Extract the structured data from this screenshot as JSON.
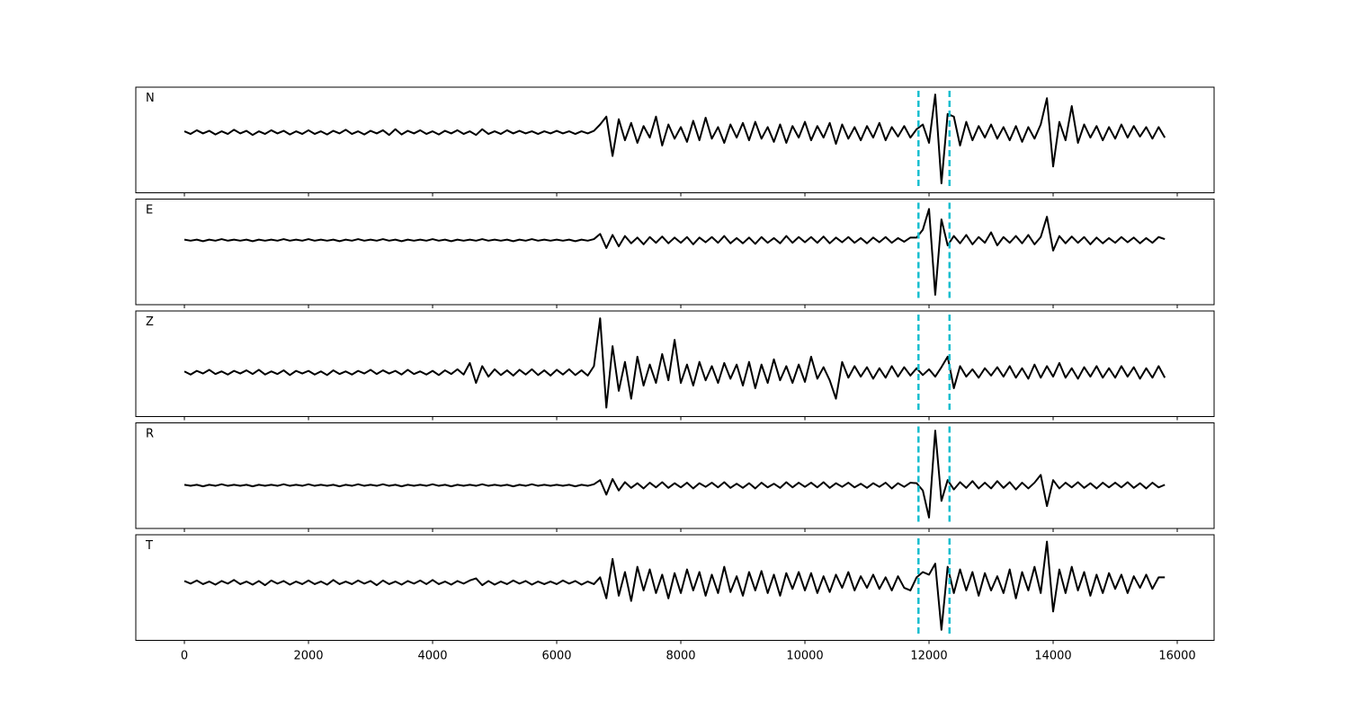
{
  "chart_data": {
    "type": "line",
    "x": [
      0,
      100,
      200,
      300,
      400,
      500,
      600,
      700,
      800,
      900,
      1000,
      1100,
      1200,
      1300,
      1400,
      1500,
      1600,
      1700,
      1800,
      1900,
      2000,
      2100,
      2200,
      2300,
      2400,
      2500,
      2600,
      2700,
      2800,
      2900,
      3000,
      3100,
      3200,
      3300,
      3400,
      3500,
      3600,
      3700,
      3800,
      3900,
      4000,
      4100,
      4200,
      4300,
      4400,
      4500,
      4600,
      4700,
      4800,
      4900,
      5000,
      5100,
      5200,
      5300,
      5400,
      5500,
      5600,
      5700,
      5800,
      5900,
      6000,
      6100,
      6200,
      6300,
      6400,
      6500,
      6600,
      6700,
      6800,
      6900,
      7000,
      7100,
      7200,
      7300,
      7400,
      7500,
      7600,
      7700,
      7800,
      7900,
      8000,
      8100,
      8200,
      8300,
      8400,
      8500,
      8600,
      8700,
      8800,
      8900,
      9000,
      9100,
      9200,
      9300,
      9400,
      9500,
      9600,
      9700,
      9800,
      9900,
      10000,
      10100,
      10200,
      10300,
      10400,
      10500,
      10600,
      10700,
      10800,
      10900,
      11000,
      11100,
      11200,
      11300,
      11400,
      11500,
      11600,
      11700,
      11800,
      11900,
      12000,
      12100,
      12200,
      12300,
      12400,
      12500,
      12600,
      12700,
      12800,
      12900,
      13000,
      13100,
      13200,
      13300,
      13400,
      13500,
      13600,
      13700,
      13800,
      13900,
      14000,
      14100,
      14200,
      14300,
      14400,
      14500,
      14600,
      14700,
      14800,
      14900,
      15000,
      15100,
      15200,
      15300,
      15400,
      15500,
      15600,
      15700,
      15800
    ],
    "xlim": [
      -783,
      16594
    ],
    "xticks": [
      0,
      2000,
      4000,
      6000,
      8000,
      10000,
      12000,
      14000,
      16000
    ],
    "markers": [
      11830,
      12330
    ],
    "marker_color": "#17becf",
    "color": "#000000",
    "series": [
      {
        "name": "N",
        "ylim": [
          -1.15,
          0.86
        ],
        "values": [
          0.02,
          -0.03,
          0.04,
          -0.02,
          0.03,
          -0.04,
          0.02,
          -0.03,
          0.05,
          -0.02,
          0.03,
          -0.05,
          0.02,
          -0.03,
          0.04,
          -0.02,
          0.03,
          -0.04,
          0.02,
          -0.03,
          0.04,
          -0.03,
          0.02,
          -0.04,
          0.03,
          -0.02,
          0.05,
          -0.03,
          0.02,
          -0.04,
          0.03,
          -0.02,
          0.04,
          -0.05,
          0.06,
          -0.04,
          0.03,
          -0.02,
          0.04,
          -0.03,
          0.02,
          -0.04,
          0.03,
          -0.02,
          0.04,
          -0.03,
          0.02,
          -0.05,
          0.06,
          -0.03,
          0.02,
          -0.03,
          0.04,
          -0.02,
          0.03,
          -0.02,
          0.02,
          -0.03,
          0.02,
          -0.02,
          0.03,
          -0.02,
          0.02,
          -0.03,
          0.02,
          -0.02,
          0.03,
          0.15,
          0.3,
          -0.45,
          0.25,
          -0.15,
          0.18,
          -0.2,
          0.12,
          -0.1,
          0.3,
          -0.25,
          0.15,
          -0.12,
          0.1,
          -0.18,
          0.22,
          -0.15,
          0.28,
          -0.12,
          0.1,
          -0.2,
          0.15,
          -0.1,
          0.18,
          -0.15,
          0.2,
          -0.12,
          0.1,
          -0.18,
          0.15,
          -0.2,
          0.12,
          -0.1,
          0.2,
          -0.15,
          0.12,
          -0.1,
          0.18,
          -0.22,
          0.15,
          -0.12,
          0.1,
          -0.15,
          0.12,
          -0.1,
          0.18,
          -0.15,
          0.1,
          -0.08,
          0.12,
          -0.1,
          0.06,
          0.15,
          -0.2,
          0.72,
          -0.97,
          0.35,
          0.3,
          -0.25,
          0.2,
          -0.15,
          0.12,
          -0.1,
          0.15,
          -0.12,
          0.1,
          -0.15,
          0.12,
          -0.18,
          0.1,
          -0.12,
          0.15,
          0.65,
          -0.65,
          0.2,
          -0.15,
          0.5,
          -0.2,
          0.15,
          -0.1,
          0.12,
          -0.15,
          0.1,
          -0.12,
          0.15,
          -0.1,
          0.12,
          -0.08,
          0.1,
          -0.12,
          0.1,
          -0.1
        ]
      },
      {
        "name": "E",
        "ylim": [
          -1.24,
          0.79
        ],
        "values": [
          0.01,
          -0.01,
          0.01,
          -0.02,
          0.01,
          -0.01,
          0.02,
          -0.01,
          0.01,
          -0.01,
          0.01,
          -0.02,
          0.01,
          -0.01,
          0.01,
          -0.01,
          0.02,
          -0.01,
          0.01,
          -0.01,
          0.02,
          -0.01,
          0.01,
          -0.01,
          0.01,
          -0.02,
          0.01,
          -0.01,
          0.02,
          -0.01,
          0.01,
          -0.01,
          0.02,
          -0.01,
          0.01,
          -0.02,
          0.01,
          -0.01,
          0.01,
          -0.01,
          0.02,
          -0.01,
          0.01,
          -0.02,
          0.01,
          -0.01,
          0.01,
          -0.01,
          0.02,
          -0.01,
          0.01,
          -0.01,
          0.01,
          -0.02,
          0.01,
          -0.01,
          0.02,
          -0.01,
          0.01,
          -0.01,
          0.01,
          -0.01,
          0.01,
          -0.02,
          0.01,
          -0.01,
          0.02,
          0.12,
          -0.15,
          0.1,
          -0.12,
          0.08,
          -0.06,
          0.05,
          -0.08,
          0.06,
          -0.05,
          0.07,
          -0.06,
          0.05,
          -0.05,
          0.06,
          -0.08,
          0.05,
          -0.04,
          0.06,
          -0.05,
          0.08,
          -0.06,
          0.04,
          -0.06,
          0.05,
          -0.07,
          0.06,
          -0.05,
          0.04,
          -0.06,
          0.08,
          -0.05,
          0.06,
          -0.04,
          0.06,
          -0.05,
          0.07,
          -0.06,
          0.05,
          -0.04,
          0.06,
          -0.05,
          0.04,
          -0.06,
          0.05,
          -0.04,
          0.06,
          -0.05,
          0.04,
          -0.03,
          0.05,
          0.05,
          0.2,
          0.6,
          -1.05,
          0.4,
          -0.1,
          0.08,
          -0.06,
          0.1,
          -0.08,
          0.06,
          -0.05,
          0.15,
          -0.1,
          0.06,
          -0.05,
          0.08,
          -0.06,
          0.1,
          -0.08,
          0.06,
          0.45,
          -0.2,
          0.08,
          -0.06,
          0.07,
          -0.05,
          0.06,
          -0.08,
          0.05,
          -0.06,
          0.04,
          -0.05,
          0.06,
          -0.04,
          0.05,
          -0.06,
          0.04,
          -0.05,
          0.06,
          0.02
        ]
      },
      {
        "name": "Z",
        "ylim": [
          -0.84,
          1.17
        ],
        "values": [
          0.02,
          -0.04,
          0.03,
          -0.02,
          0.05,
          -0.03,
          0.02,
          -0.04,
          0.03,
          -0.02,
          0.04,
          -0.03,
          0.05,
          -0.04,
          0.02,
          -0.03,
          0.04,
          -0.05,
          0.03,
          -0.02,
          0.03,
          -0.04,
          0.02,
          -0.05,
          0.04,
          -0.03,
          0.02,
          -0.04,
          0.03,
          -0.02,
          0.05,
          -0.03,
          0.04,
          -0.02,
          0.03,
          -0.04,
          0.05,
          -0.03,
          0.02,
          -0.04,
          0.03,
          -0.05,
          0.04,
          -0.03,
          0.06,
          -0.04,
          0.18,
          -0.2,
          0.12,
          -0.08,
          0.06,
          -0.05,
          0.04,
          -0.06,
          0.05,
          -0.04,
          0.06,
          -0.05,
          0.04,
          -0.06,
          0.05,
          -0.04,
          0.06,
          -0.05,
          0.04,
          -0.06,
          0.12,
          1.03,
          -0.67,
          0.5,
          -0.35,
          0.2,
          -0.5,
          0.3,
          -0.25,
          0.15,
          -0.2,
          0.35,
          -0.15,
          0.62,
          -0.2,
          0.15,
          -0.25,
          0.2,
          -0.15,
          0.12,
          -0.2,
          0.18,
          -0.12,
          0.15,
          -0.25,
          0.2,
          -0.3,
          0.15,
          -0.2,
          0.25,
          -0.15,
          0.12,
          -0.2,
          0.15,
          -0.18,
          0.3,
          -0.12,
          0.1,
          -0.15,
          -0.5,
          0.2,
          -0.1,
          0.12,
          -0.08,
          0.1,
          -0.12,
          0.08,
          -0.1,
          0.12,
          -0.08,
          0.1,
          -0.06,
          0.08,
          -0.05,
          0.06,
          -0.08,
          0.1,
          0.3,
          -0.3,
          0.12,
          -0.08,
          0.06,
          -0.1,
          0.08,
          -0.06,
          0.1,
          -0.08,
          0.12,
          -0.1,
          0.08,
          -0.12,
          0.15,
          -0.1,
          0.12,
          -0.08,
          0.18,
          -0.1,
          0.08,
          -0.12,
          0.1,
          -0.08,
          0.12,
          -0.1,
          0.08,
          -0.1,
          0.12,
          -0.08,
          0.1,
          -0.12,
          0.08,
          -0.1,
          0.12,
          -0.1
        ]
      },
      {
        "name": "R",
        "ylim": [
          -0.83,
          1.2
        ],
        "values": [
          0.01,
          -0.01,
          0.01,
          -0.02,
          0.01,
          -0.01,
          0.02,
          -0.01,
          0.01,
          -0.01,
          0.01,
          -0.02,
          0.01,
          -0.01,
          0.01,
          -0.01,
          0.02,
          -0.01,
          0.01,
          -0.01,
          0.02,
          -0.01,
          0.01,
          -0.01,
          0.01,
          -0.02,
          0.01,
          -0.01,
          0.02,
          -0.01,
          0.01,
          -0.01,
          0.02,
          -0.01,
          0.01,
          -0.02,
          0.01,
          -0.01,
          0.01,
          -0.01,
          0.02,
          -0.01,
          0.01,
          -0.02,
          0.01,
          -0.01,
          0.01,
          -0.01,
          0.02,
          -0.01,
          0.01,
          -0.01,
          0.01,
          -0.02,
          0.01,
          -0.01,
          0.02,
          -0.01,
          0.01,
          -0.01,
          0.01,
          -0.01,
          0.01,
          -0.02,
          0.01,
          -0.01,
          0.02,
          0.1,
          -0.18,
          0.12,
          -0.1,
          0.06,
          -0.05,
          0.04,
          -0.06,
          0.05,
          -0.04,
          0.06,
          -0.05,
          0.04,
          -0.04,
          0.05,
          -0.06,
          0.04,
          -0.03,
          0.05,
          -0.04,
          0.06,
          -0.05,
          0.03,
          -0.05,
          0.04,
          -0.06,
          0.05,
          -0.04,
          0.03,
          -0.05,
          0.06,
          -0.04,
          0.05,
          -0.03,
          0.05,
          -0.04,
          0.06,
          -0.05,
          0.04,
          -0.03,
          0.05,
          -0.04,
          0.03,
          -0.05,
          0.04,
          -0.03,
          0.05,
          -0.06,
          0.04,
          -0.03,
          0.05,
          0.04,
          -0.1,
          -0.62,
          1.05,
          -0.3,
          0.1,
          -0.08,
          0.06,
          -0.05,
          0.08,
          -0.06,
          0.05,
          -0.06,
          0.08,
          -0.05,
          0.06,
          -0.08,
          0.05,
          -0.06,
          0.05,
          0.2,
          -0.4,
          0.1,
          -0.06,
          0.05,
          -0.04,
          0.06,
          -0.05,
          0.04,
          -0.06,
          0.05,
          -0.04,
          0.05,
          -0.04,
          0.06,
          -0.05,
          0.04,
          -0.06,
          0.05,
          -0.04,
          0.01
        ]
      },
      {
        "name": "T",
        "ylim": [
          -1.1,
          0.91
        ],
        "values": [
          0.03,
          -0.02,
          0.04,
          -0.03,
          0.02,
          -0.04,
          0.03,
          -0.02,
          0.05,
          -0.03,
          0.02,
          -0.04,
          0.03,
          -0.05,
          0.04,
          -0.02,
          0.03,
          -0.04,
          0.02,
          -0.03,
          0.04,
          -0.03,
          0.02,
          -0.04,
          0.05,
          -0.03,
          0.02,
          -0.03,
          0.04,
          -0.02,
          0.03,
          -0.05,
          0.04,
          -0.03,
          0.02,
          -0.04,
          0.03,
          -0.02,
          0.04,
          -0.03,
          0.05,
          -0.03,
          0.02,
          -0.04,
          0.03,
          -0.02,
          0.04,
          0.08,
          -0.05,
          0.03,
          -0.04,
          0.02,
          -0.03,
          0.04,
          -0.02,
          0.03,
          -0.04,
          0.02,
          -0.03,
          0.02,
          -0.03,
          0.04,
          -0.02,
          0.03,
          -0.04,
          0.02,
          -0.03,
          0.1,
          -0.3,
          0.45,
          -0.25,
          0.2,
          -0.35,
          0.3,
          -0.15,
          0.25,
          -0.2,
          0.15,
          -0.3,
          0.18,
          -0.2,
          0.25,
          -0.15,
          0.2,
          -0.25,
          0.15,
          -0.2,
          0.3,
          -0.18,
          0.12,
          -0.25,
          0.2,
          -0.15,
          0.22,
          -0.2,
          0.15,
          -0.25,
          0.18,
          -0.12,
          0.2,
          -0.15,
          0.18,
          -0.2,
          0.12,
          -0.18,
          0.15,
          -0.1,
          0.2,
          -0.15,
          0.12,
          -0.1,
          0.15,
          -0.12,
          0.1,
          -0.15,
          0.12,
          -0.1,
          -0.15,
          0.1,
          0.2,
          0.15,
          0.36,
          -0.9,
          0.3,
          -0.2,
          0.25,
          -0.15,
          0.2,
          -0.25,
          0.18,
          -0.15,
          0.12,
          -0.2,
          0.25,
          -0.3,
          0.2,
          -0.15,
          0.3,
          -0.2,
          0.78,
          -0.55,
          0.25,
          -0.2,
          0.3,
          -0.15,
          0.2,
          -0.25,
          0.15,
          -0.2,
          0.18,
          -0.12,
          0.15,
          -0.2,
          0.12,
          -0.1,
          0.15,
          -0.12,
          0.1,
          0.1
        ]
      }
    ]
  }
}
